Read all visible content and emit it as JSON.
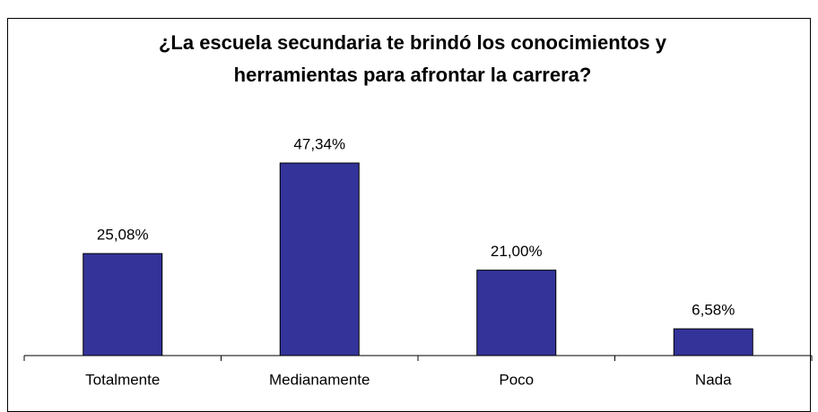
{
  "chart_data": {
    "type": "bar",
    "title": "¿La escuela secundaria te brindó los conocimientos y herramientas para afrontar la carrera?",
    "categories": [
      "Totalmente",
      "Medianamente",
      "Poco",
      "Nada"
    ],
    "values": [
      25.08,
      47.34,
      21.0,
      6.58
    ],
    "value_labels": [
      "25,08%",
      "47,34%",
      "21,00%",
      "6,58%"
    ],
    "color": "#333399"
  }
}
